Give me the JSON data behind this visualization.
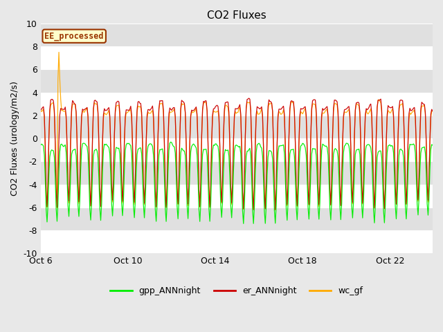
{
  "title": "CO2 Fluxes",
  "ylabel": "CO2 Fluxes (urology/m2/s)",
  "xlabel": "",
  "ylim": [
    -10,
    10
  ],
  "yticks": [
    -10,
    -8,
    -6,
    -4,
    -2,
    0,
    2,
    4,
    6,
    8,
    10
  ],
  "xtick_labels": [
    "Oct 6",
    "Oct 10",
    "Oct 14",
    "Oct 18",
    "Oct 22"
  ],
  "xtick_positions": [
    0,
    96,
    192,
    288,
    384
  ],
  "n_points": 432,
  "bg_color": "#e0e0e0",
  "white_band_color": "#f0f0f0",
  "legend_labels": [
    "gpp_ANNnight",
    "er_ANNnight",
    "wc_gf"
  ],
  "line_colors": [
    "#00ee00",
    "#cc0000",
    "#ffaa00"
  ],
  "annotation_text": "EE_processed",
  "annotation_bg": "#ffffcc",
  "annotation_border": "#993300",
  "annotation_text_color": "#993300",
  "title_fontsize": 11,
  "label_fontsize": 9,
  "tick_fontsize": 9,
  "legend_fontsize": 9,
  "fig_bg": "#e8e8e8"
}
